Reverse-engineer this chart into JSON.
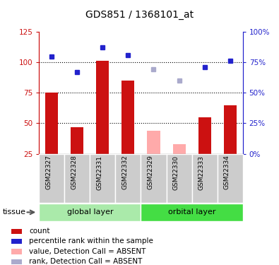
{
  "title": "GDS851 / 1368101_at",
  "samples": [
    "GSM22327",
    "GSM22328",
    "GSM22331",
    "GSM22332",
    "GSM22329",
    "GSM22330",
    "GSM22333",
    "GSM22334"
  ],
  "count_values": [
    75,
    47,
    101,
    85,
    null,
    null,
    55,
    65
  ],
  "count_absent_values": [
    null,
    null,
    null,
    null,
    44,
    33,
    null,
    null
  ],
  "rank_values": [
    80,
    67,
    87,
    81,
    null,
    null,
    71,
    76
  ],
  "rank_absent_values": [
    null,
    null,
    null,
    null,
    69,
    60,
    null,
    null
  ],
  "ylim_left": [
    25,
    125
  ],
  "ylim_right": [
    0,
    100
  ],
  "yticks_left": [
    25,
    50,
    75,
    100,
    125
  ],
  "yticks_right": [
    0,
    25,
    50,
    75,
    100
  ],
  "ytick_labels_right": [
    "0%",
    "25%",
    "50%",
    "75%",
    "100%"
  ],
  "hlines": [
    50,
    75,
    100
  ],
  "color_count": "#cc1111",
  "color_count_absent": "#ffaaaa",
  "color_rank": "#2222cc",
  "color_rank_absent": "#aaaacc",
  "color_xtick_bg": "#cccccc",
  "color_group_global": "#aaeaaa",
  "color_group_orbital": "#44dd44",
  "legend_items": [
    {
      "label": "count",
      "color": "#cc1111"
    },
    {
      "label": "percentile rank within the sample",
      "color": "#2222cc"
    },
    {
      "label": "value, Detection Call = ABSENT",
      "color": "#ffaaaa"
    },
    {
      "label": "rank, Detection Call = ABSENT",
      "color": "#aaaacc"
    }
  ],
  "group_labels": [
    "global layer",
    "orbital layer"
  ],
  "tissue_label": "tissue"
}
